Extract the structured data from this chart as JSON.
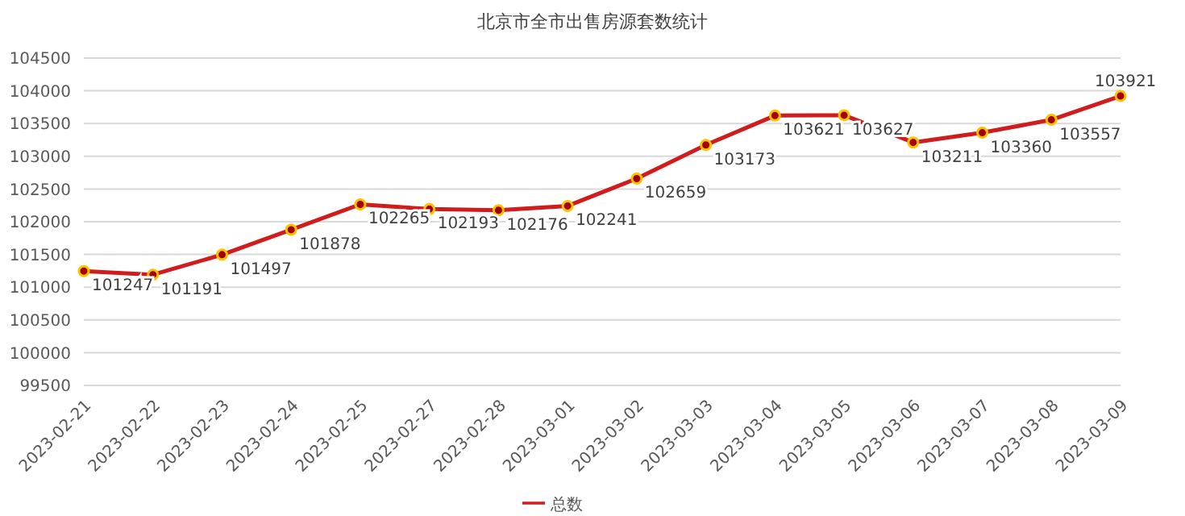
{
  "chart_data": {
    "type": "line",
    "title": "北京市全市出售房源套数统计",
    "categories": [
      "2023-02-21",
      "2023-02-22",
      "2023-02-23",
      "2023-02-24",
      "2023-02-25",
      "2023-02-27",
      "2023-02-28",
      "2023-03-01",
      "2023-03-02",
      "2023-03-03",
      "2023-03-04",
      "2023-03-05",
      "2023-03-06",
      "2023-03-07",
      "2023-03-08",
      "2023-03-09"
    ],
    "series": [
      {
        "name": "总数",
        "color": "#d01c1c",
        "values": [
          101247,
          101191,
          101497,
          101878,
          102265,
          102193,
          102176,
          102241,
          102659,
          103173,
          103621,
          103627,
          103211,
          103360,
          103557,
          103921
        ]
      }
    ],
    "ylim": [
      99500,
      104500
    ],
    "yticks": [
      99500,
      100000,
      100500,
      101000,
      101500,
      102000,
      102500,
      103000,
      103500,
      104000,
      104500
    ],
    "grid": "y",
    "legend": "bottom",
    "marker": "circle",
    "line_style": "solid",
    "data_labels": true
  }
}
